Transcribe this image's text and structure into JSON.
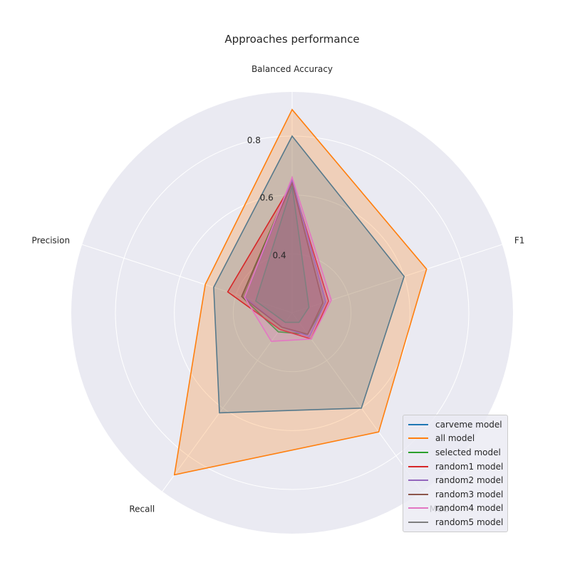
{
  "chart_data": {
    "type": "radar",
    "title": "Approaches performance",
    "axes": [
      "Balanced Accuracy",
      "F1",
      "MCC",
      "Recall",
      "Precision"
    ],
    "rlim": [
      0.2,
      0.95
    ],
    "r_ticks": [
      0.4,
      0.6,
      0.8
    ],
    "r_tick_labels": [
      "0.4",
      "0.6",
      "0.8"
    ],
    "grid": true,
    "legend_position": "lower-right",
    "series": [
      {
        "name": "carveme model",
        "color": "#1f77b4",
        "values": [
          0.8,
          0.6,
          0.6,
          0.62,
          0.48
        ]
      },
      {
        "name": "all model",
        "color": "#ff7f0e",
        "values": [
          0.89,
          0.68,
          0.7,
          0.88,
          0.51
        ]
      },
      {
        "name": "selected model",
        "color": "#2ca02c",
        "values": [
          0.65,
          0.32,
          0.29,
          0.28,
          0.38
        ]
      },
      {
        "name": "random1 model",
        "color": "#d62728",
        "values": [
          0.64,
          0.33,
          0.31,
          0.27,
          0.43
        ]
      },
      {
        "name": "random2 model",
        "color": "#9467bd",
        "values": [
          0.65,
          0.32,
          0.3,
          0.26,
          0.37
        ]
      },
      {
        "name": "random3 model",
        "color": "#8c564b",
        "values": [
          0.64,
          0.31,
          0.29,
          0.26,
          0.38
        ]
      },
      {
        "name": "random4 model",
        "color": "#e377c2",
        "values": [
          0.66,
          0.34,
          0.31,
          0.32,
          0.37
        ]
      },
      {
        "name": "random5 model",
        "color": "#7f7f7f",
        "values": [
          0.63,
          0.26,
          0.24,
          0.24,
          0.33
        ]
      }
    ]
  }
}
